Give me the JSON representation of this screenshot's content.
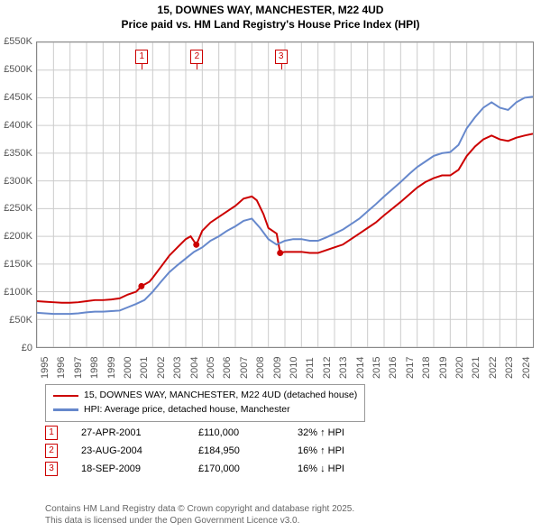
{
  "title_line1": "15, DOWNES WAY, MANCHESTER, M22 4UD",
  "title_line2": "Price paid vs. HM Land Registry's House Price Index (HPI)",
  "chart": {
    "type": "line",
    "background_color": "#ffffff",
    "grid_color": "#cccccc",
    "border_color": "#888888",
    "y": {
      "min": 0,
      "max": 550000,
      "step": 50000,
      "format": "K",
      "prefix": "£",
      "label_color": "#555555",
      "fontsize": 11
    },
    "x": {
      "min": 1995,
      "max": 2025,
      "ticks": [
        1995,
        1996,
        1997,
        1998,
        1999,
        2000,
        2001,
        2002,
        2003,
        2004,
        2005,
        2006,
        2007,
        2008,
        2009,
        2010,
        2011,
        2012,
        2013,
        2014,
        2015,
        2016,
        2017,
        2018,
        2019,
        2020,
        2021,
        2022,
        2023,
        2024
      ],
      "label_color": "#555555",
      "fontsize": 11,
      "rotation": -90
    },
    "series": [
      {
        "name": "price_paid",
        "label": "15, DOWNES WAY, MANCHESTER, M22 4UD (detached house)",
        "color": "#cc0000",
        "line_width": 2,
        "points": [
          [
            1995.0,
            83000
          ],
          [
            1995.5,
            82000
          ],
          [
            1996.0,
            81000
          ],
          [
            1996.5,
            80000
          ],
          [
            1997.0,
            80000
          ],
          [
            1997.5,
            81000
          ],
          [
            1998.0,
            83000
          ],
          [
            1998.5,
            85000
          ],
          [
            1999.0,
            85000
          ],
          [
            1999.5,
            86000
          ],
          [
            2000.0,
            88000
          ],
          [
            2000.5,
            95000
          ],
          [
            2001.0,
            100000
          ],
          [
            2001.32,
            110000
          ],
          [
            2001.8,
            118000
          ],
          [
            2002.0,
            125000
          ],
          [
            2002.5,
            145000
          ],
          [
            2003.0,
            165000
          ],
          [
            2003.5,
            180000
          ],
          [
            2004.0,
            195000
          ],
          [
            2004.3,
            200000
          ],
          [
            2004.64,
            184950
          ],
          [
            2005.0,
            210000
          ],
          [
            2005.5,
            225000
          ],
          [
            2006.0,
            235000
          ],
          [
            2006.5,
            245000
          ],
          [
            2007.0,
            255000
          ],
          [
            2007.5,
            268000
          ],
          [
            2008.0,
            272000
          ],
          [
            2008.3,
            265000
          ],
          [
            2008.7,
            240000
          ],
          [
            2009.0,
            215000
          ],
          [
            2009.5,
            205000
          ],
          [
            2009.71,
            170000
          ],
          [
            2010.0,
            172000
          ],
          [
            2010.5,
            172000
          ],
          [
            2011.0,
            172000
          ],
          [
            2011.5,
            170000
          ],
          [
            2012.0,
            170000
          ],
          [
            2012.5,
            175000
          ],
          [
            2013.0,
            180000
          ],
          [
            2013.5,
            185000
          ],
          [
            2014.0,
            195000
          ],
          [
            2014.5,
            205000
          ],
          [
            2015.0,
            215000
          ],
          [
            2015.5,
            225000
          ],
          [
            2016.0,
            238000
          ],
          [
            2016.5,
            250000
          ],
          [
            2017.0,
            262000
          ],
          [
            2017.5,
            275000
          ],
          [
            2018.0,
            288000
          ],
          [
            2018.5,
            298000
          ],
          [
            2019.0,
            305000
          ],
          [
            2019.5,
            310000
          ],
          [
            2020.0,
            310000
          ],
          [
            2020.5,
            320000
          ],
          [
            2021.0,
            345000
          ],
          [
            2021.5,
            362000
          ],
          [
            2022.0,
            375000
          ],
          [
            2022.5,
            382000
          ],
          [
            2023.0,
            375000
          ],
          [
            2023.5,
            372000
          ],
          [
            2024.0,
            378000
          ],
          [
            2024.5,
            382000
          ],
          [
            2025.0,
            385000
          ]
        ]
      },
      {
        "name": "hpi",
        "label": "HPI: Average price, detached house, Manchester",
        "color": "#6688cc",
        "line_width": 2,
        "points": [
          [
            1995.0,
            62000
          ],
          [
            1995.5,
            61000
          ],
          [
            1996.0,
            60000
          ],
          [
            1996.5,
            60000
          ],
          [
            1997.0,
            60000
          ],
          [
            1997.5,
            61000
          ],
          [
            1998.0,
            63000
          ],
          [
            1998.5,
            64000
          ],
          [
            1999.0,
            64000
          ],
          [
            1999.5,
            65000
          ],
          [
            2000.0,
            66000
          ],
          [
            2000.5,
            72000
          ],
          [
            2001.0,
            78000
          ],
          [
            2001.5,
            85000
          ],
          [
            2002.0,
            100000
          ],
          [
            2002.5,
            118000
          ],
          [
            2003.0,
            135000
          ],
          [
            2003.5,
            148000
          ],
          [
            2004.0,
            160000
          ],
          [
            2004.5,
            172000
          ],
          [
            2005.0,
            180000
          ],
          [
            2005.5,
            192000
          ],
          [
            2006.0,
            200000
          ],
          [
            2006.5,
            210000
          ],
          [
            2007.0,
            218000
          ],
          [
            2007.5,
            228000
          ],
          [
            2008.0,
            232000
          ],
          [
            2008.5,
            215000
          ],
          [
            2009.0,
            195000
          ],
          [
            2009.5,
            185000
          ],
          [
            2010.0,
            192000
          ],
          [
            2010.5,
            195000
          ],
          [
            2011.0,
            195000
          ],
          [
            2011.5,
            192000
          ],
          [
            2012.0,
            192000
          ],
          [
            2012.5,
            198000
          ],
          [
            2013.0,
            205000
          ],
          [
            2013.5,
            212000
          ],
          [
            2014.0,
            222000
          ],
          [
            2014.5,
            232000
          ],
          [
            2015.0,
            245000
          ],
          [
            2015.5,
            258000
          ],
          [
            2016.0,
            272000
          ],
          [
            2016.5,
            285000
          ],
          [
            2017.0,
            298000
          ],
          [
            2017.5,
            312000
          ],
          [
            2018.0,
            325000
          ],
          [
            2018.5,
            335000
          ],
          [
            2019.0,
            345000
          ],
          [
            2019.5,
            350000
          ],
          [
            2020.0,
            352000
          ],
          [
            2020.5,
            365000
          ],
          [
            2021.0,
            395000
          ],
          [
            2021.5,
            415000
          ],
          [
            2022.0,
            432000
          ],
          [
            2022.5,
            442000
          ],
          [
            2023.0,
            432000
          ],
          [
            2023.5,
            428000
          ],
          [
            2024.0,
            442000
          ],
          [
            2024.5,
            450000
          ],
          [
            2025.0,
            452000
          ]
        ]
      }
    ],
    "markers": [
      {
        "num": "1",
        "x": 2001.32,
        "y": 110000,
        "color": "#cc0000"
      },
      {
        "num": "2",
        "x": 2004.64,
        "y": 184950,
        "color": "#cc0000"
      },
      {
        "num": "3",
        "x": 2009.71,
        "y": 170000,
        "color": "#cc0000"
      }
    ]
  },
  "legend_items": [
    {
      "color": "#cc0000",
      "text": "15, DOWNES WAY, MANCHESTER, M22 4UD (detached house)"
    },
    {
      "color": "#6688cc",
      "text": "HPI: Average price, detached house, Manchester"
    }
  ],
  "transactions": [
    {
      "num": "1",
      "color": "#cc0000",
      "date": "27-APR-2001",
      "price": "£110,000",
      "pct": "32%",
      "arrow": "↑",
      "suffix": "HPI"
    },
    {
      "num": "2",
      "color": "#cc0000",
      "date": "23-AUG-2004",
      "price": "£184,950",
      "pct": "16%",
      "arrow": "↑",
      "suffix": "HPI"
    },
    {
      "num": "3",
      "color": "#cc0000",
      "date": "18-SEP-2009",
      "price": "£170,000",
      "pct": "16%",
      "arrow": "↓",
      "suffix": "HPI"
    }
  ],
  "footer_line1": "Contains HM Land Registry data © Crown copyright and database right 2025.",
  "footer_line2": "This data is licensed under the Open Government Licence v3.0."
}
